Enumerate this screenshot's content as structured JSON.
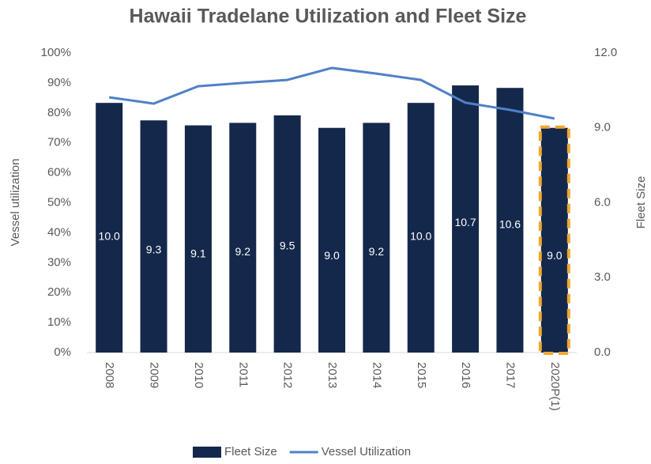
{
  "chart_data": {
    "type": "bar-line",
    "title": "Hawaii Tradelane Utilization and Fleet Size",
    "y_label": "Vessel utilization",
    "y2_label": "Fleet Size",
    "categories": [
      "2008",
      "2009",
      "2010",
      "2011",
      "2012",
      "2013",
      "2014",
      "2015",
      "2016",
      "2017",
      "2020P(1)"
    ],
    "series": [
      {
        "name": "Fleet Size",
        "type": "bar",
        "axis": "y2",
        "color": "#14284b",
        "values": [
          10.0,
          9.3,
          9.1,
          9.2,
          9.5,
          9.0,
          9.2,
          10.0,
          10.7,
          10.6,
          9.0
        ],
        "value_labels": [
          "10.0",
          "9.3",
          "9.1",
          "9.2",
          "9.5",
          "9.0",
          "9.2",
          "10.0",
          "10.7",
          "10.6",
          "9.0"
        ]
      },
      {
        "name": "Vessel Utilization",
        "type": "line",
        "color": "#4f81c7",
        "values": [
          85.2,
          83.1,
          88.9,
          90.0,
          91.0,
          95.0,
          93.1,
          91.0,
          83.4,
          81.0,
          78.1
        ]
      }
    ],
    "highlight_index": 10,
    "highlight_color": "#f0a830",
    "ylim": [
      0,
      100
    ],
    "yticks": [
      {
        "value": 0,
        "label": "0%"
      },
      {
        "value": 10,
        "label": "10%"
      },
      {
        "value": 20,
        "label": "20%"
      },
      {
        "value": 30,
        "label": "30%"
      },
      {
        "value": 40,
        "label": "40%"
      },
      {
        "value": 50,
        "label": "50%"
      },
      {
        "value": 60,
        "label": "60%"
      },
      {
        "value": 70,
        "label": "70%"
      },
      {
        "value": 80,
        "label": "80%"
      },
      {
        "value": 90,
        "label": "90%"
      },
      {
        "value": 100,
        "label": "100%"
      }
    ],
    "y2lim": [
      0,
      12
    ],
    "y2ticks": [
      {
        "value": 0,
        "label": "0.0"
      },
      {
        "value": 3,
        "label": "3.0"
      },
      {
        "value": 6,
        "label": "6.0"
      },
      {
        "value": 9,
        "label": "9.0"
      },
      {
        "value": 12,
        "label": "12.0"
      }
    ],
    "legend": "bottom"
  }
}
